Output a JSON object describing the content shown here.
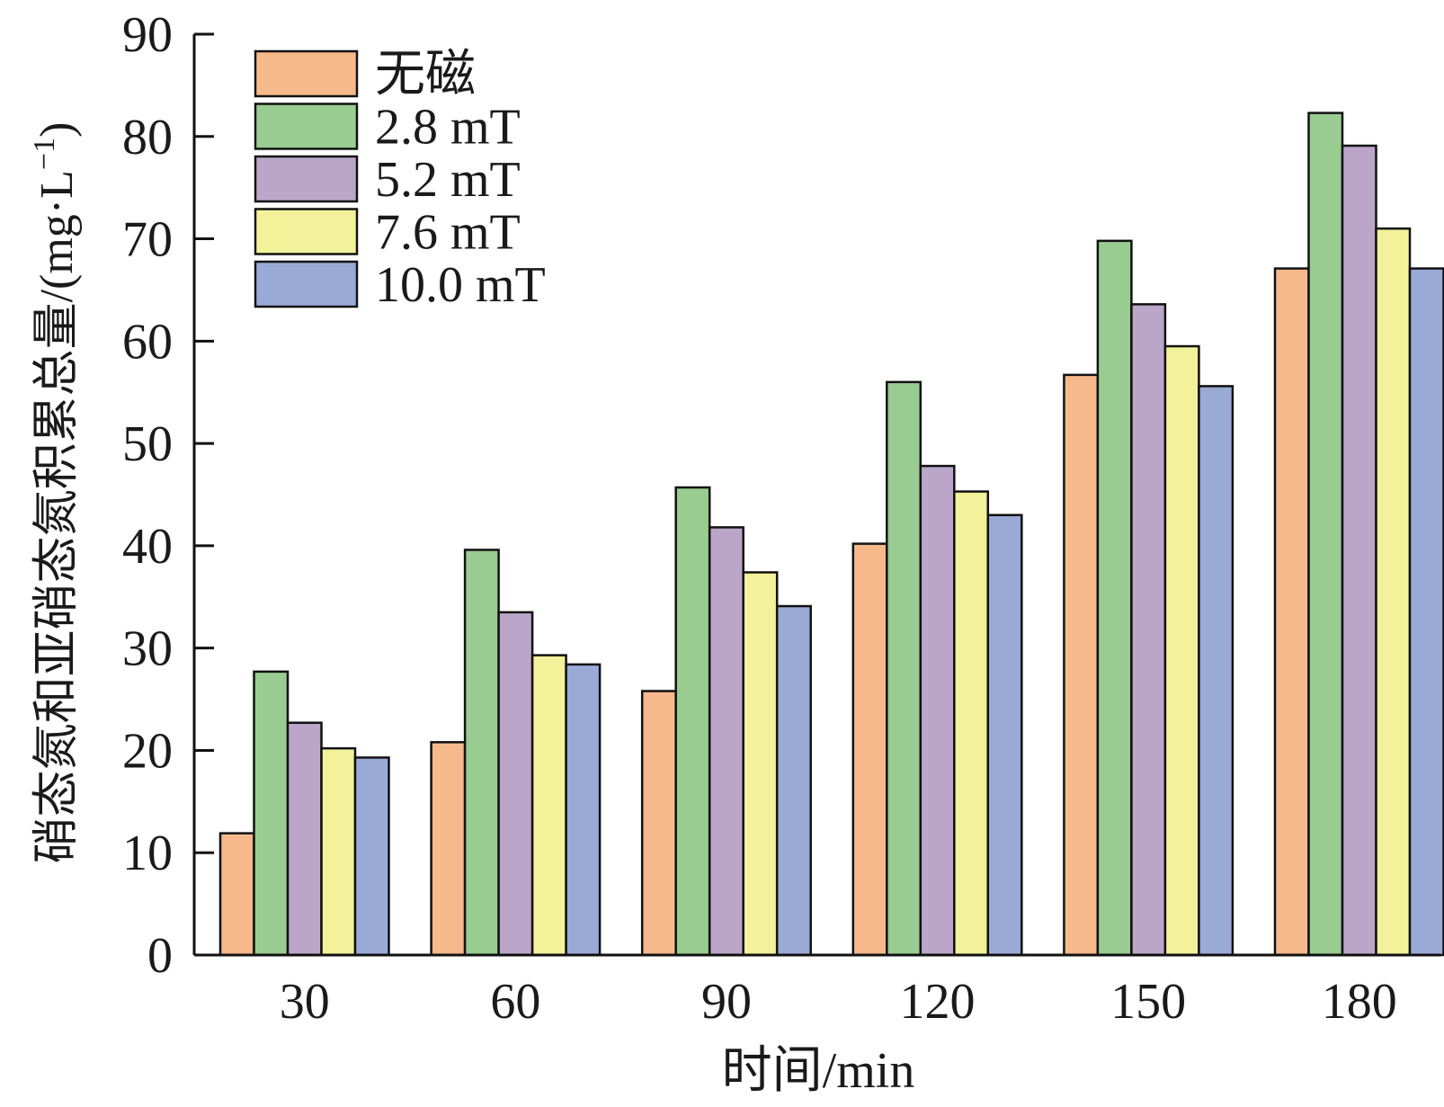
{
  "chart_data": {
    "type": "bar",
    "title": "",
    "xlabel": "时间/min",
    "ylabel": "硝态氮和亚硝态氮积累总量/(mg·L",
    "ylabel_sup": "−1",
    "ylabel_close": ")",
    "ylim": [
      0,
      90
    ],
    "yticks": [
      0,
      10,
      20,
      30,
      40,
      50,
      60,
      70,
      80,
      90
    ],
    "categories": [
      "30",
      "60",
      "90",
      "120",
      "150",
      "180"
    ],
    "grid": false,
    "legend_position": "top-left",
    "series": [
      {
        "name": "无磁",
        "color": "#F5B98C",
        "values": [
          11.9,
          20.8,
          25.8,
          40.2,
          56.7,
          67.1
        ]
      },
      {
        "name": "2.8 mT",
        "color": "#99CC90",
        "values": [
          27.7,
          39.6,
          45.7,
          56.0,
          69.8,
          82.3
        ]
      },
      {
        "name": "5.2 mT",
        "color": "#BBA6C9",
        "values": [
          22.7,
          33.5,
          41.8,
          47.8,
          63.6,
          79.1
        ]
      },
      {
        "name": "7.6 mT",
        "color": "#F3F19A",
        "values": [
          20.2,
          29.3,
          37.4,
          45.3,
          59.5,
          71.0
        ]
      },
      {
        "name": "10.0 mT",
        "color": "#9AAAD6",
        "values": [
          19.3,
          28.4,
          34.1,
          43.0,
          55.6,
          67.1
        ]
      }
    ]
  }
}
